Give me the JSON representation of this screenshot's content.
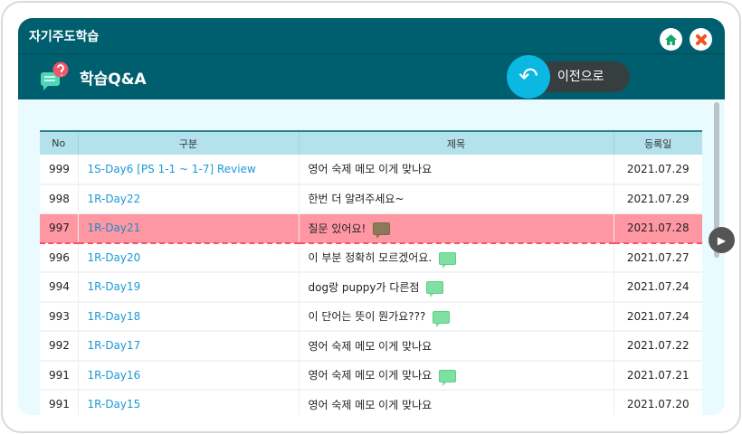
{
  "window": {
    "title": "자기주도학습",
    "home_icon": "home-icon",
    "close_icon": "close-icon"
  },
  "header": {
    "title": "학습Q&A",
    "icon": "qna-chat-icon"
  },
  "table": {
    "columns": [
      "No",
      "구분",
      "제목",
      "등록일"
    ],
    "rows": [
      {
        "no": "999",
        "category": "1S-Day6 [PS 1-1 ~ 1-7] Review",
        "title": "영어 숙제 메모 이게 맞나요",
        "comment": false,
        "date": "2021.07.29"
      },
      {
        "no": "998",
        "category": "1R-Day22",
        "title": "한번 더 알려주세요~",
        "comment": false,
        "date": "2021.07.29"
      },
      {
        "no": "997",
        "category": "1R-Day21",
        "title": "질문 있어요!",
        "comment": true,
        "date": "2021.07.28",
        "highlighted": true
      },
      {
        "no": "996",
        "category": "1R-Day20",
        "title": "이 부분 정확히 모르겠어요.",
        "comment": true,
        "date": "2021.07.27"
      },
      {
        "no": "994",
        "category": "1R-Day19",
        "title": "dog랑 puppy가 다른점",
        "comment": true,
        "date": "2021.07.24"
      },
      {
        "no": "993",
        "category": "1R-Day18",
        "title": "이 단어는 뜻이 뭔가요???",
        "comment": true,
        "date": "2021.07.24"
      },
      {
        "no": "992",
        "category": "1R-Day17",
        "title": "영어 숙제 메모 이게 맞나요",
        "comment": false,
        "date": "2021.07.22"
      },
      {
        "no": "991",
        "category": "1R-Day16",
        "title": "영어 숙제 메모 이게 맞나요",
        "comment": true,
        "date": "2021.07.21"
      },
      {
        "no": "991",
        "category": "1R-Day15",
        "title": "영어 숙제 메모 이게 맞나요",
        "comment": false,
        "date": "2021.07.20"
      }
    ]
  },
  "back_button": {
    "label": "이전으로"
  },
  "colors": {
    "topbar": "#005f6e",
    "highlight": "#ff97a3",
    "link": "#1a9ad6",
    "back": "#0ab8e2"
  }
}
